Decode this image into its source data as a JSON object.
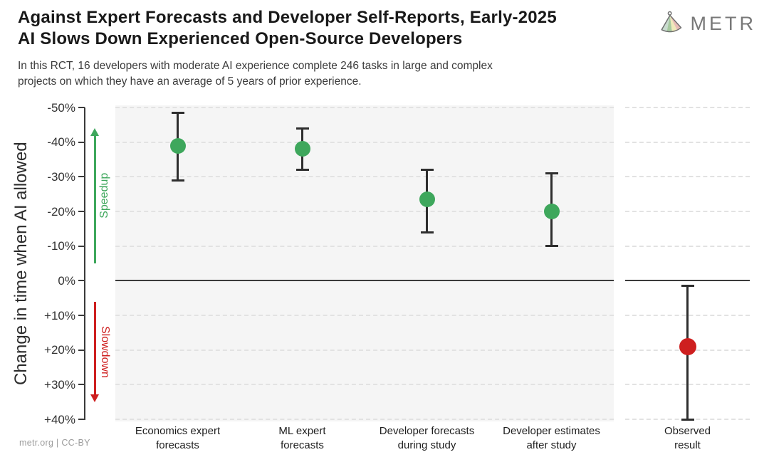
{
  "header": {
    "title": "Against Expert Forecasts and Developer Self-Reports, Early-2025\nAI Slows Down Experienced Open-Source Developers",
    "subtitle": "In this RCT, 16 developers with moderate AI experience complete 246 tasks in large and complex\nprojects on which they have an average of 5 years of prior experience.",
    "logo_text": "METR"
  },
  "footer": {
    "attribution": "metr.org | CC-BY"
  },
  "palette": {
    "green": "#3ea75c",
    "red": "#ce1f1f",
    "bar": "#2e2e2e",
    "axis": "#3a3a3a",
    "panel_bg": "#f5f5f5"
  },
  "chart_data": {
    "type": "scatter",
    "title": "Against Expert Forecasts and Developer Self-Reports, Early-2025 AI Slows Down Experienced Open-Source Developers",
    "subtitle": "In this RCT, 16 developers with moderate AI experience complete 246 tasks in large and complex projects on which they have an average of 5 years of prior experience.",
    "ylabel": "Change in time when AI allowed",
    "units": "%",
    "ylim_top_to_bottom": [
      -50,
      40
    ],
    "grid": true,
    "yticks": [
      {
        "label": "-50%",
        "value": -50
      },
      {
        "label": "-40%",
        "value": -40
      },
      {
        "label": "-30%",
        "value": -30
      },
      {
        "label": "-20%",
        "value": -20
      },
      {
        "label": "-10%",
        "value": -10
      },
      {
        "label": "0%",
        "value": 0
      },
      {
        "label": "+10%",
        "value": 10
      },
      {
        "label": "+20%",
        "value": 20
      },
      {
        "label": "+30%",
        "value": 30
      },
      {
        "label": "+40%",
        "value": 40
      }
    ],
    "annotations": {
      "speedup": {
        "label": "Speedup",
        "direction": "up",
        "color": "#3ea75c",
        "span_pct": [
          -44,
          -5
        ]
      },
      "slowdown": {
        "label": "Slowdown",
        "direction": "down",
        "color": "#ce1f1f",
        "span_pct": [
          6,
          35
        ]
      }
    },
    "series": [
      {
        "category": "Economics expert\nforecasts",
        "value": -39,
        "ci": [
          -48.5,
          -29
        ],
        "color": "green",
        "panel": "main"
      },
      {
        "category": "ML expert\nforecasts",
        "value": -38,
        "ci": [
          -44,
          -32
        ],
        "color": "green",
        "panel": "main"
      },
      {
        "category": "Developer forecasts\nduring study",
        "value": -23.5,
        "ci": [
          -32,
          -14
        ],
        "color": "green",
        "panel": "main"
      },
      {
        "category": "Developer estimates\nafter study",
        "value": -20,
        "ci": [
          -31,
          -10
        ],
        "color": "green",
        "panel": "main"
      },
      {
        "category": "Observed\nresult",
        "value": 19,
        "ci": [
          1.5,
          40
        ],
        "color": "red",
        "panel": "observed"
      }
    ]
  }
}
